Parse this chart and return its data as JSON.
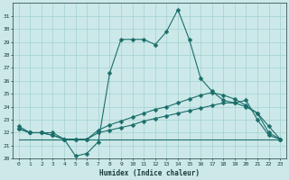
{
  "xlabel": "Humidex (Indice chaleur)",
  "bg_color": "#cce8e8",
  "line_color": "#1a6e6a",
  "grid_color": "#99cccc",
  "xlim": [
    -0.5,
    23.5
  ],
  "ylim": [
    20,
    32
  ],
  "yticks": [
    20,
    21,
    22,
    23,
    24,
    25,
    26,
    27,
    28,
    29,
    30,
    31
  ],
  "xticks": [
    0,
    1,
    2,
    3,
    4,
    5,
    6,
    7,
    8,
    9,
    10,
    11,
    12,
    13,
    14,
    15,
    16,
    17,
    18,
    19,
    20,
    21,
    22,
    23
  ],
  "curve1_x": [
    0,
    1,
    2,
    3,
    4,
    5,
    6,
    7,
    8,
    9,
    10,
    11,
    12,
    13,
    14,
    15,
    16,
    17,
    18,
    19,
    20,
    21,
    22,
    23
  ],
  "curve1_y": [
    22.5,
    22.0,
    22.0,
    22.0,
    21.5,
    20.2,
    20.4,
    21.3,
    26.6,
    29.2,
    29.2,
    29.2,
    28.8,
    29.8,
    31.5,
    29.2,
    26.2,
    25.2,
    24.5,
    24.3,
    24.5,
    23.0,
    21.8,
    21.5
  ],
  "curve2_x": [
    0,
    1,
    2,
    3,
    4,
    5,
    6,
    7,
    8,
    9,
    10,
    11,
    12,
    13,
    14,
    15,
    16,
    17,
    18,
    19,
    20,
    21,
    22,
    23
  ],
  "curve2_y": [
    22.3,
    22.0,
    22.0,
    21.8,
    21.5,
    21.5,
    21.5,
    22.0,
    22.2,
    22.4,
    22.6,
    22.9,
    23.1,
    23.3,
    23.5,
    23.7,
    23.9,
    24.1,
    24.3,
    24.3,
    24.0,
    23.5,
    22.0,
    21.5
  ],
  "curve3_x": [
    0,
    1,
    2,
    3,
    4,
    5,
    6,
    7,
    8,
    9,
    10,
    11,
    12,
    13,
    14,
    15,
    16,
    17,
    18,
    19,
    20,
    21,
    22,
    23
  ],
  "curve3_y": [
    22.3,
    22.0,
    22.0,
    21.8,
    21.5,
    21.5,
    21.5,
    22.2,
    22.6,
    22.9,
    23.2,
    23.5,
    23.8,
    24.0,
    24.3,
    24.6,
    24.9,
    25.1,
    24.9,
    24.6,
    24.1,
    23.5,
    22.5,
    21.5
  ],
  "curve4_x": [
    0,
    23
  ],
  "curve4_y": [
    21.5,
    21.5
  ],
  "markersize": 2.5,
  "linewidth": 0.8
}
